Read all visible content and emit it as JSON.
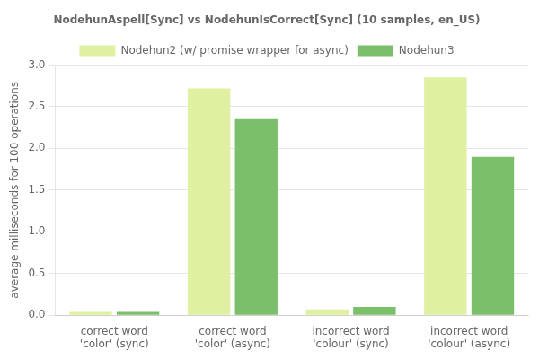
{
  "chart_data": {
    "type": "bar",
    "title": "NodehunAspell[Sync] vs NodehunIsCorrect[Sync] (10 samples, en_US)",
    "ylabel": "average milliseconds for 100 operations",
    "categories": [
      "correct word\n'color' (sync)",
      "correct word\n'color' (async)",
      "incorrect word\n'colour' (sync)",
      "incorrect word\n'colour' (async)"
    ],
    "series": [
      {
        "name": "Nodehun2 (w/ promise wrapper for async)",
        "color": "#dff0a0",
        "values": [
          0.04,
          2.72,
          0.07,
          2.85
        ]
      },
      {
        "name": "Nodehun3",
        "color": "#7bbf6a",
        "values": [
          0.04,
          2.35,
          0.1,
          1.9
        ]
      }
    ],
    "ylim": [
      0,
      3.0
    ],
    "yticks": [
      {
        "value": 0,
        "label": "0.0"
      },
      0.5,
      {
        "value": 1.0,
        "label": "1.0"
      },
      1.5,
      {
        "value": 2.0,
        "label": "2.0"
      },
      2.5,
      {
        "value": 3.0,
        "label": "3.0"
      }
    ],
    "grid": true,
    "legend": "top"
  }
}
